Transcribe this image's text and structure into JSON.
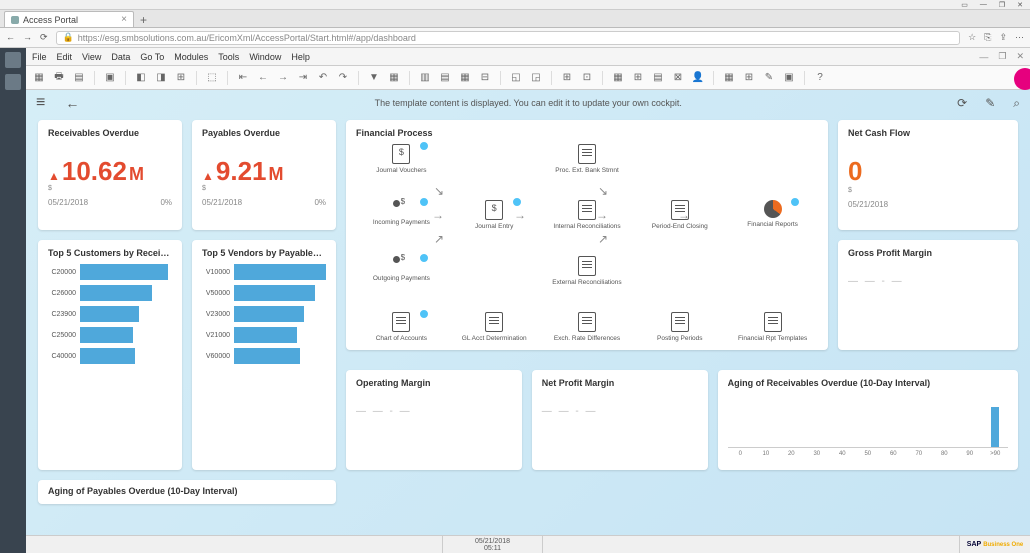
{
  "browser": {
    "tab_title": "Access Portal",
    "url": "https://esg.smbsolutions.com.au/EricomXml/AccessPortal/Start.html#/app/dashboard"
  },
  "menubar": [
    "File",
    "Edit",
    "View",
    "Data",
    "Go To",
    "Modules",
    "Tools",
    "Window",
    "Help"
  ],
  "dash_header": {
    "center_text": "The template content is displayed. You can edit it to update your own cockpit."
  },
  "kpi": {
    "receivables": {
      "title": "Receivables Overdue",
      "value": "10.62",
      "unit": "M",
      "currency": "$",
      "date": "05/21/2018",
      "pct": "0%",
      "color": "#e34b2f"
    },
    "payables": {
      "title": "Payables Overdue",
      "value": "9.21",
      "unit": "M",
      "currency": "$",
      "date": "05/21/2018",
      "pct": "0%",
      "color": "#e34b2f"
    },
    "netcash": {
      "title": "Net Cash Flow",
      "value": "0",
      "unit": "",
      "currency": "$",
      "date": "05/21/2018",
      "pct": "",
      "color": "#ec6b1f"
    }
  },
  "process": {
    "title": "Financial Process",
    "items": [
      {
        "label": "Journal Vouchers",
        "icon": "dollar",
        "badge": true
      },
      {
        "label": "Proc. Ext. Bank Stmnt",
        "icon": "doc"
      },
      {
        "label": "Incoming Payments",
        "icon": "people",
        "badge": true
      },
      {
        "label": "Journal Entry",
        "icon": "dollar",
        "badge": true
      },
      {
        "label": "Internal Reconciliations",
        "icon": "doc"
      },
      {
        "label": "Period-End Closing",
        "icon": "doc"
      },
      {
        "label": "Financial Reports",
        "icon": "pie",
        "badge": true
      },
      {
        "label": "Outgoing Payments",
        "icon": "people",
        "badge": true
      },
      {
        "label": "External Reconciliations",
        "icon": "doc"
      },
      {
        "label": "Chart of Accounts",
        "icon": "doc",
        "badge": true
      },
      {
        "label": "GL Acct Determination",
        "icon": "doc"
      },
      {
        "label": "Exch. Rate Differences",
        "icon": "doc"
      },
      {
        "label": "Posting Periods",
        "icon": "doc"
      },
      {
        "label": "Financial Rpt Templates",
        "icon": "doc"
      }
    ]
  },
  "top_customers": {
    "title": "Top 5 Customers by Receiva...",
    "bar_color": "#4fa8db",
    "rows": [
      {
        "label": "C20000",
        "value": 96
      },
      {
        "label": "C26000",
        "value": 78
      },
      {
        "label": "C23900",
        "value": 64
      },
      {
        "label": "C25000",
        "value": 58
      },
      {
        "label": "C40000",
        "value": 60
      }
    ]
  },
  "top_vendors": {
    "title": "Top 5 Vendors by Payables O...",
    "bar_color": "#4fa8db",
    "rows": [
      {
        "label": "V10000",
        "value": 100
      },
      {
        "label": "V50000",
        "value": 88
      },
      {
        "label": "V23000",
        "value": 76
      },
      {
        "label": "V21000",
        "value": 68
      },
      {
        "label": "V60000",
        "value": 72
      }
    ]
  },
  "gpm": {
    "title": "Gross Profit Margin"
  },
  "operating": {
    "title": "Operating Margin"
  },
  "netprofit": {
    "title": "Net Profit Margin"
  },
  "aging_recv": {
    "title": "Aging of Receivables Overdue (10-Day Interval)",
    "bar_color": "#4fa8db",
    "ticks": [
      "0",
      "10",
      "20",
      "30",
      "40",
      "50",
      "60",
      "70",
      "80",
      "90",
      ">90"
    ],
    "values": [
      0,
      0,
      0,
      0,
      0,
      0,
      0,
      0,
      0,
      0,
      40
    ]
  },
  "aging_pay": {
    "title": "Aging of Payables Overdue (10-Day Interval)"
  },
  "statusbar": {
    "datetime": "05/21/2018\n05:11",
    "brand": "SAP",
    "brand2": "Business One"
  }
}
